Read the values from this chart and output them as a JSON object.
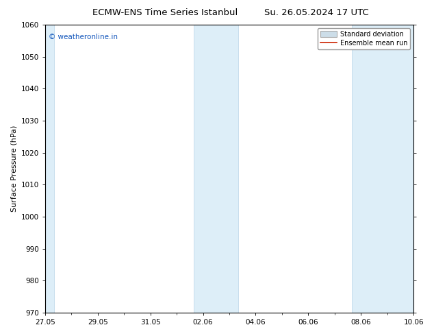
{
  "title_left": "ECMW-ENS Time Series Istanbul",
  "title_right": "Su. 26.05.2024 17 UTC",
  "ylabel": "Surface Pressure (hPa)",
  "ylim": [
    970,
    1060
  ],
  "yticks": [
    970,
    980,
    990,
    1000,
    1010,
    1020,
    1030,
    1040,
    1050,
    1060
  ],
  "xlim": [
    0.0,
    14.0
  ],
  "xtick_positions": [
    0,
    2,
    4,
    6,
    8,
    10,
    12,
    14
  ],
  "xtick_labels": [
    "27.05",
    "29.05",
    "31.05",
    "02.06",
    "04.06",
    "06.06",
    "08.06",
    "10.06"
  ],
  "shaded_bands": [
    {
      "xmin": 0.0,
      "xmax": 0.35
    },
    {
      "xmin": 5.65,
      "xmax": 7.35
    },
    {
      "xmin": 11.65,
      "xmax": 14.0
    }
  ],
  "shade_color": "#ddeef8",
  "shade_edge_color": "#b8d4e8",
  "watermark_text": "© weatheronline.in",
  "watermark_color": "#1155bb",
  "legend_std_label": "Standard deviation",
  "legend_mean_label": "Ensemble mean run",
  "mean_line_color": "#cc2200",
  "std_fill_color": "#ccdde8",
  "background_color": "#ffffff",
  "title_fontsize": 9.5,
  "ylabel_fontsize": 8,
  "tick_fontsize": 7.5,
  "watermark_fontsize": 7.5,
  "legend_fontsize": 7
}
